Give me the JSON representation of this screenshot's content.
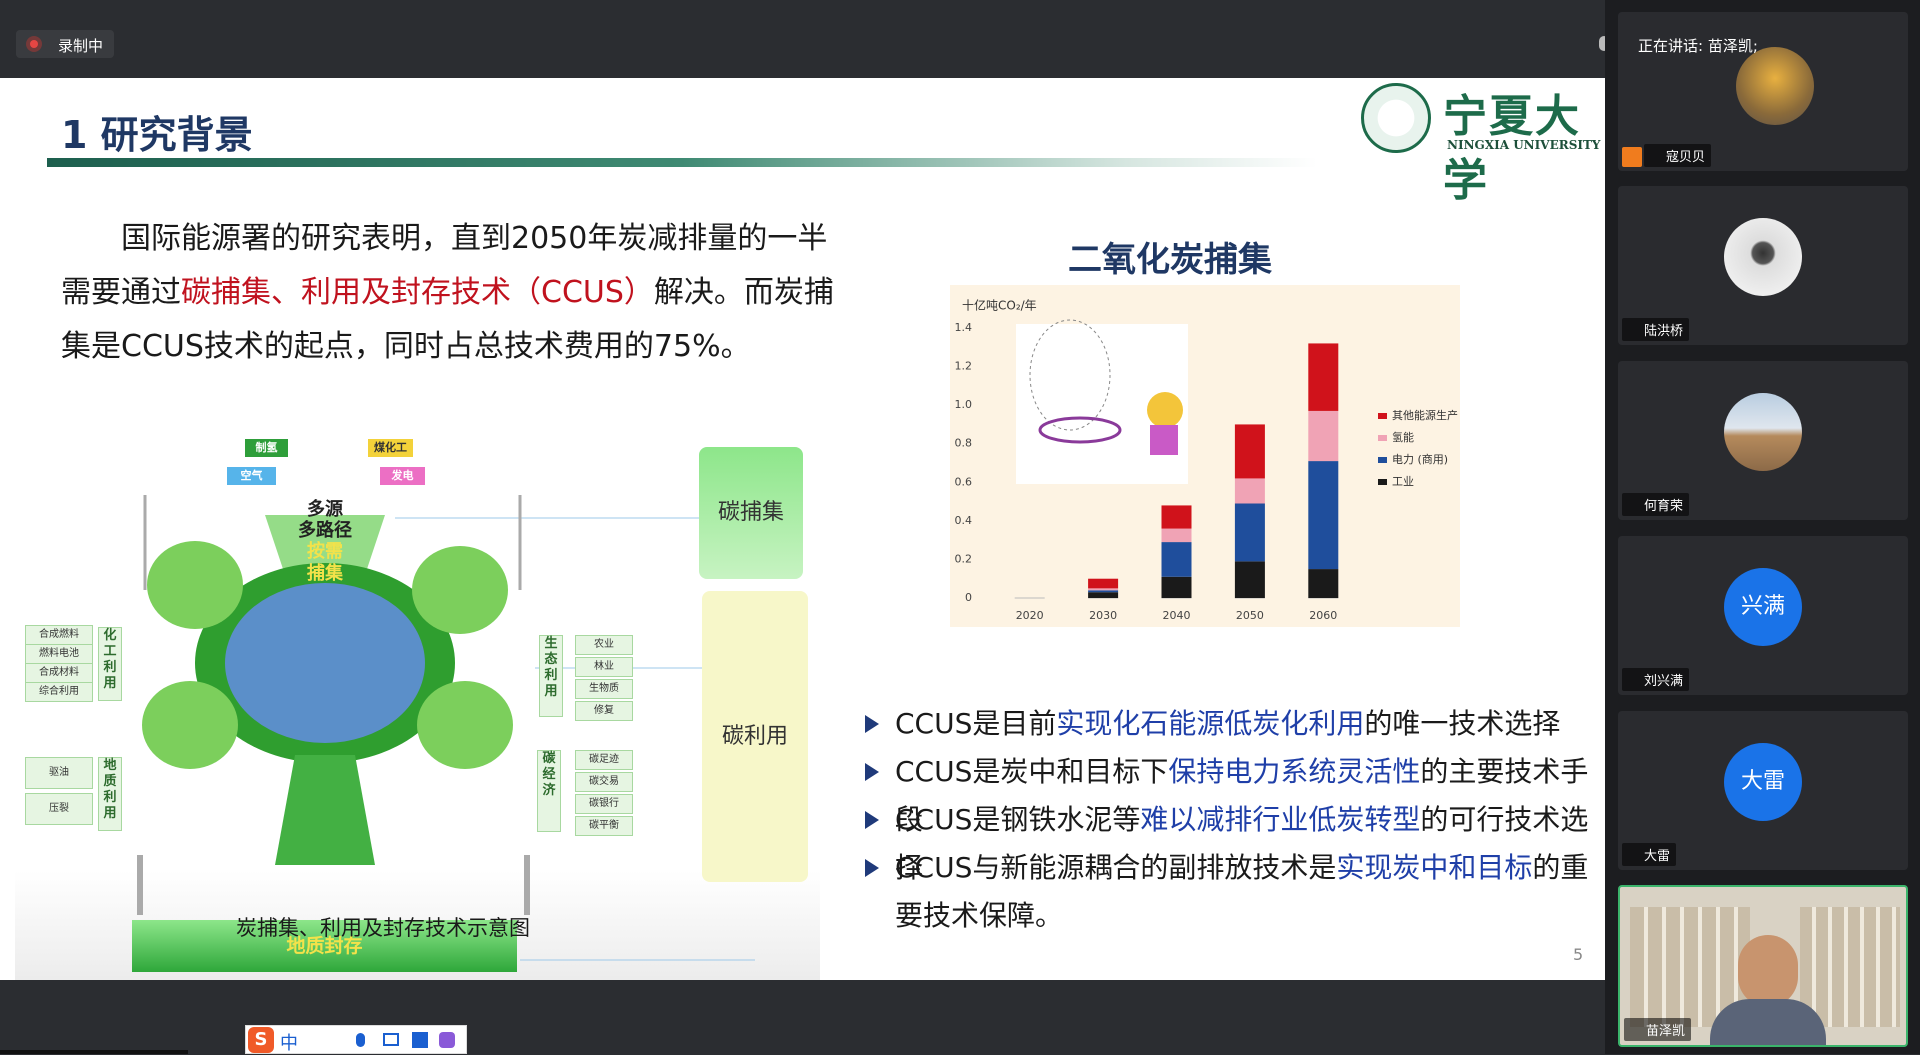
{
  "top_bar": {
    "recording": "录制中",
    "speaking": "正在讲话: 苗泽凯;"
  },
  "slide": {
    "title": "1 研究背景",
    "logo": {
      "name": "宁夏大学",
      "english": "NINGXIA UNIVERSITY"
    },
    "paragraph": {
      "before": "国际能源署的研究表明，直到2050年炭减排量的一半需要通过",
      "highlight": "碳捕集、利用及封存技术（CCUS）",
      "after": "解决。而炭捕集是CCUS技术的起点，同时占总技术费用的75%。"
    },
    "diagram": {
      "sources": [
        "制氢",
        "煤化工",
        "空气",
        "发电"
      ],
      "center": [
        "多源",
        "多路径",
        "按需",
        "捕集"
      ],
      "capture": "碳捕集",
      "utilization": "碳利用",
      "storage": "地质封存",
      "chemical": {
        "label": "化工利用",
        "items": [
          "合成燃料",
          "燃料电池",
          "合成材料",
          "综合利用"
        ]
      },
      "geological": {
        "label": "地质利用",
        "items": [
          "驱油",
          "压裂"
        ]
      },
      "ecological": {
        "label": "生态利用",
        "items": [
          "农业",
          "林业",
          "生物质",
          "修复"
        ]
      },
      "economy": {
        "label": "碳经济",
        "items": [
          "碳足迹",
          "碳交易",
          "碳银行",
          "碳平衡"
        ]
      },
      "caption": "炭捕集、利用及封存技术示意图"
    },
    "bullets": [
      {
        "before": "CCUS是目前",
        "highlight": "实现化石能源低炭化利用",
        "after": "的唯一技术选择"
      },
      {
        "before": "CCUS是炭中和目标下",
        "highlight": "保持电力系统灵活性",
        "after": "的主要技术手段"
      },
      {
        "before": "CCUS是钢铁水泥等",
        "highlight": "难以减排行业低炭转型",
        "after": "的可行技术选择"
      },
      {
        "before": "CCUS与新能源耦合的副排放技术是",
        "highlight": "实现炭中和目标",
        "after": "的重要技术保障。"
      }
    ],
    "page_number": "5"
  },
  "chart_data": {
    "type": "bar",
    "stacked": true,
    "title": "二氧化炭捕集",
    "y_label": "十亿吨CO₂/年",
    "categories": [
      "2020",
      "2030",
      "2040",
      "2050",
      "2060"
    ],
    "series": [
      {
        "name": "工业",
        "color": "#1a1a1a",
        "values": [
          0,
          0.03,
          0.11,
          0.19,
          0.15
        ]
      },
      {
        "name": "电力 (商用)",
        "color": "#1f4e9c",
        "values": [
          0,
          0.01,
          0.18,
          0.3,
          0.56
        ]
      },
      {
        "name": "氢能",
        "color": "#f0a3b5",
        "values": [
          0,
          0.01,
          0.07,
          0.13,
          0.26
        ]
      },
      {
        "name": "其他能源生产",
        "color": "#d0121b",
        "values": [
          0,
          0.05,
          0.12,
          0.28,
          0.35
        ]
      }
    ],
    "ylim": [
      0,
      1.4
    ],
    "yticks": [
      0,
      0.2,
      0.4,
      0.6,
      0.8,
      {
        "value": 1,
        "label": "1.0"
      },
      1.2,
      1.4
    ],
    "grid": false,
    "legend": "right"
  },
  "participants": [
    {
      "name": "寇贝贝"
    },
    {
      "name": "陆洪桥"
    },
    {
      "name": "何育荣"
    },
    {
      "name": "刘兴满",
      "avatar": "兴满"
    },
    {
      "name": "大雷",
      "avatar": "大雷"
    },
    {
      "name": "苗泽凯"
    }
  ],
  "ime": {
    "mode": "中"
  }
}
